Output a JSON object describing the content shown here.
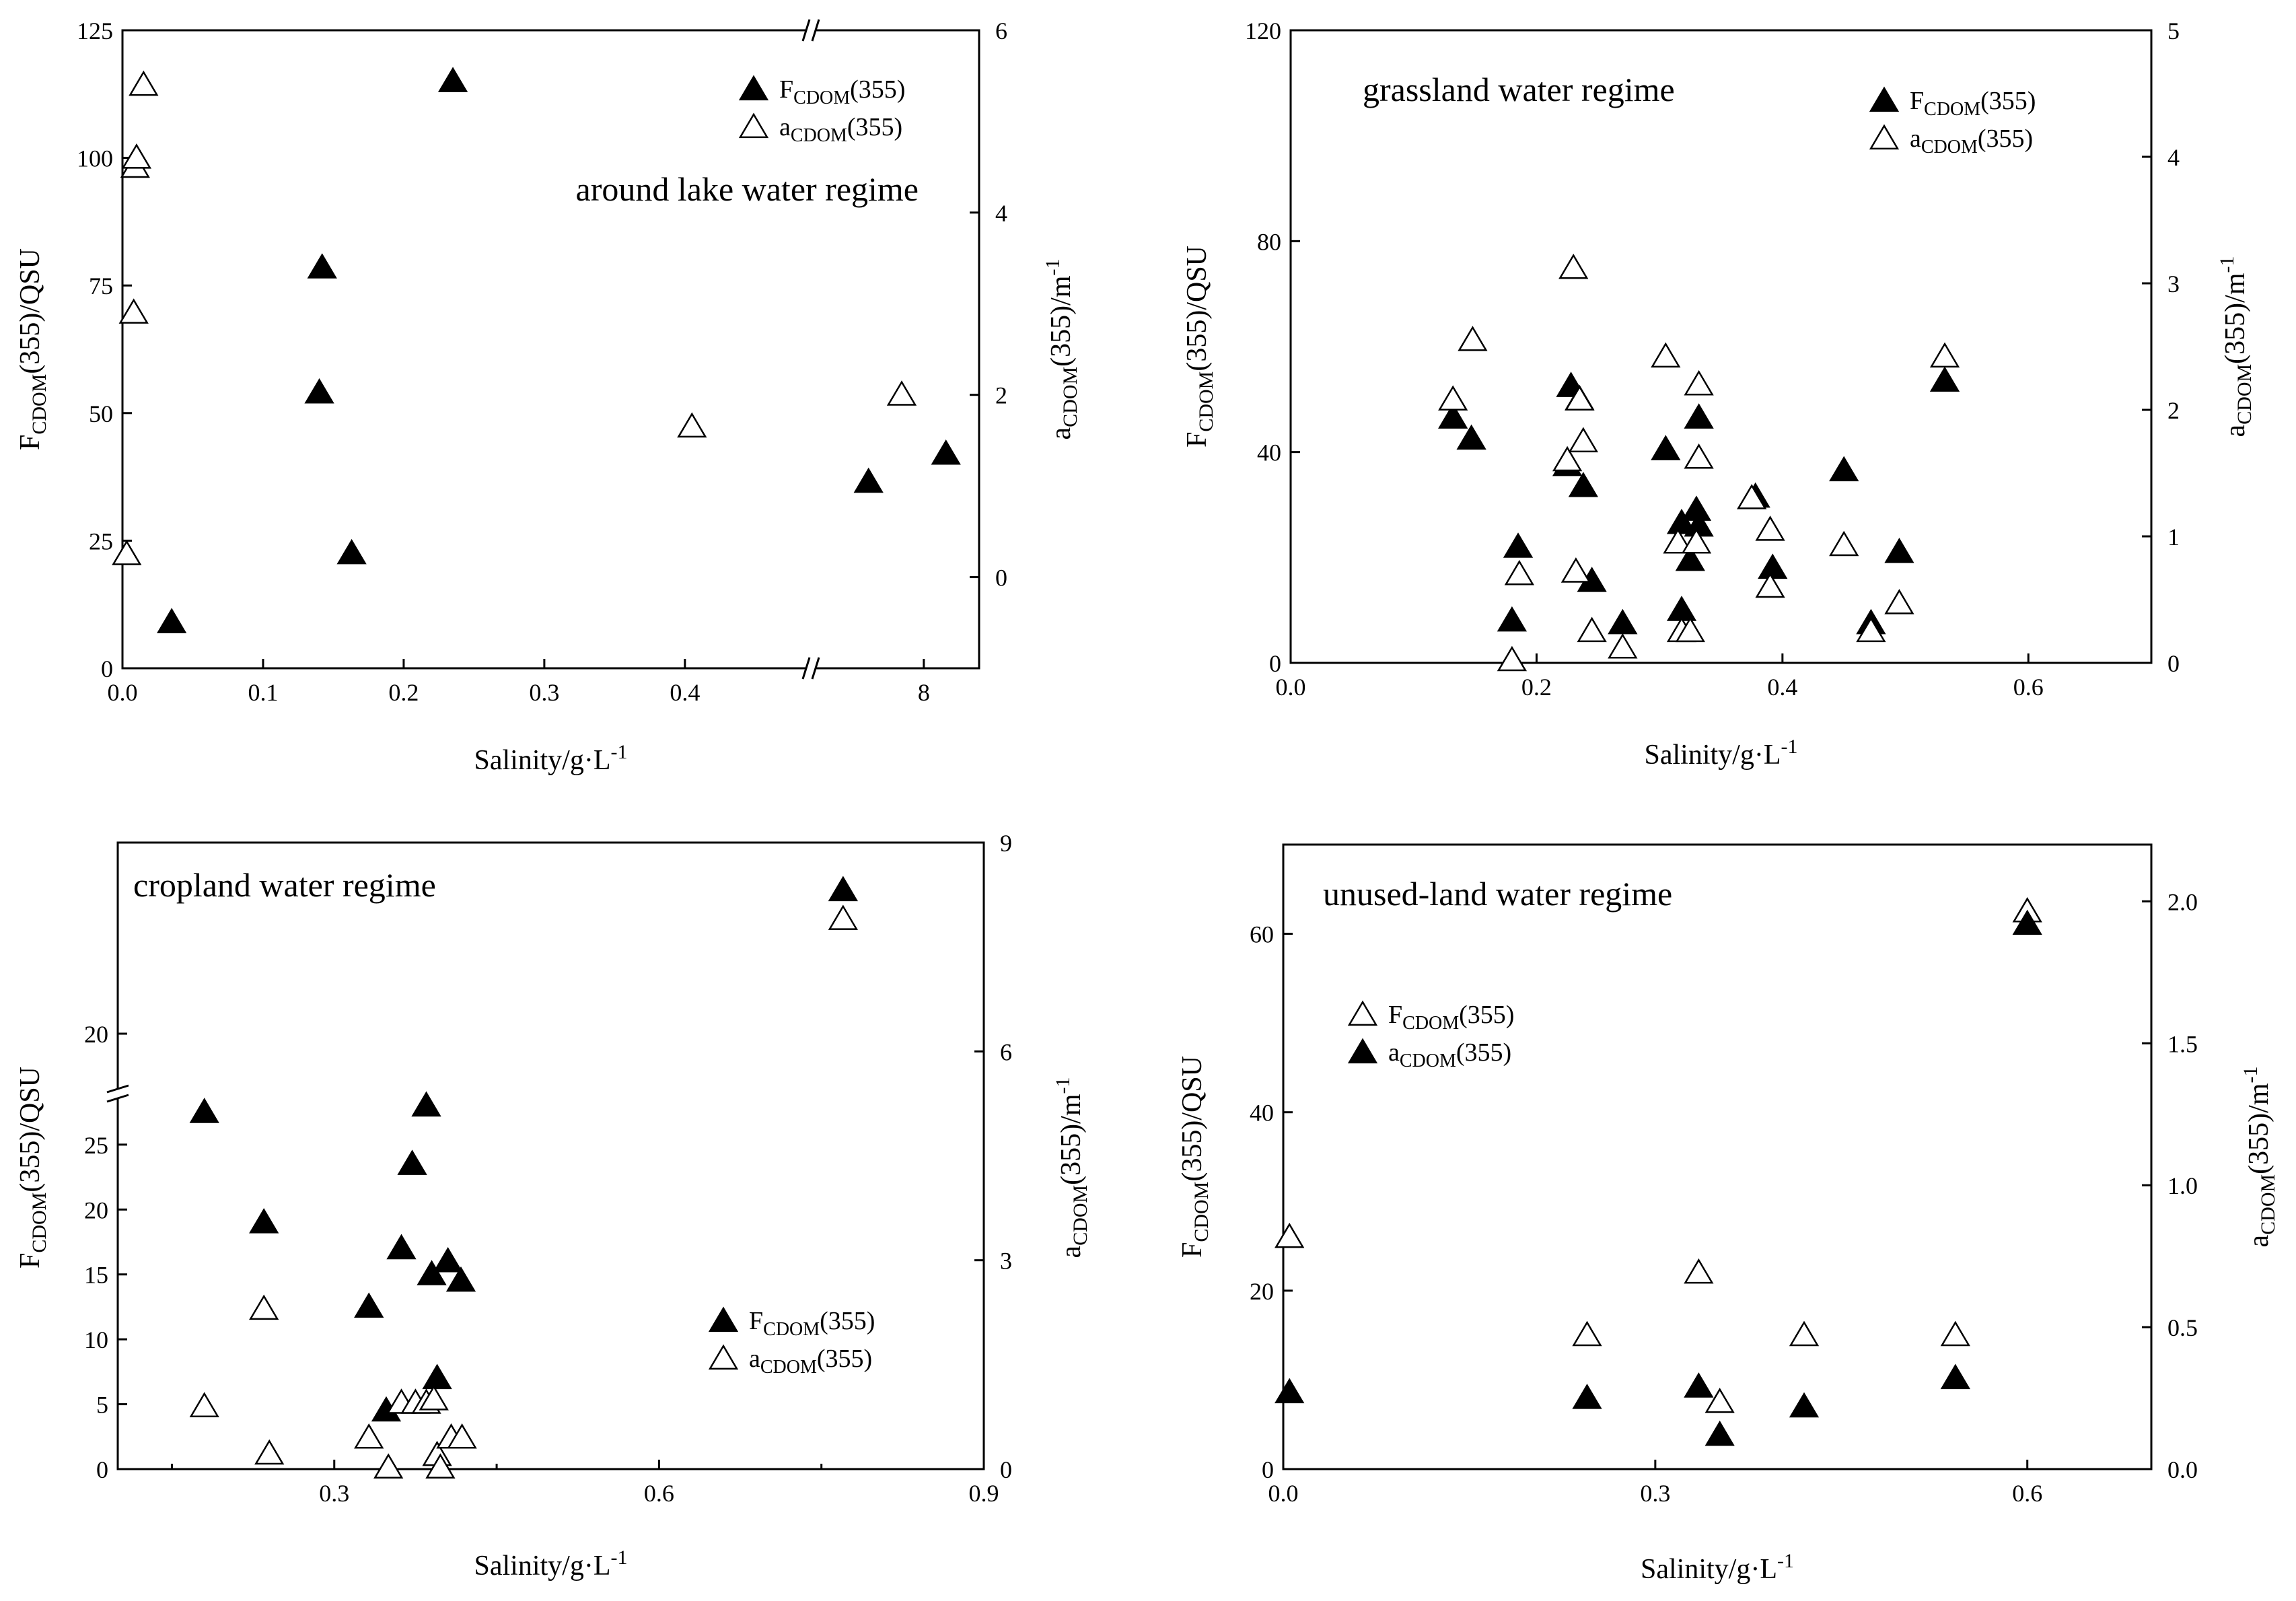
{
  "colors": {
    "axis": "#000000",
    "filled_marker": "#000000",
    "open_marker": "#ffffff"
  },
  "chart_data": [
    {
      "id": "around-lake",
      "type": "scatter",
      "title": "around lake water regime",
      "xlabel": "Salinity/g·L",
      "xlabel_sup": "-1",
      "ylabel_left": {
        "base": "F",
        "sub": "CDOM",
        "rest": "(355)/QSU"
      },
      "ylabel_right": {
        "base": "a",
        "sub": "CDOM",
        "rest": "(355)/m",
        "sup": "-1"
      },
      "x_broken": true,
      "x_segments": [
        {
          "range": [
            0,
            0.48
          ],
          "ticks": [
            0.0,
            0.1,
            0.2,
            0.3,
            0.4
          ],
          "tick_labels": [
            "0.0",
            "0.1",
            "0.2",
            "0.3",
            "0.4"
          ]
        },
        {
          "range": [
            7.1,
            8.5
          ],
          "ticks": [
            8
          ],
          "tick_labels": [
            "8"
          ]
        }
      ],
      "ylim_left": [
        0,
        125
      ],
      "yticks_left": [
        0,
        25,
        50,
        75,
        100,
        125
      ],
      "ylim_right": [
        -1,
        6
      ],
      "yticks_right": [
        0,
        2,
        4,
        6
      ],
      "legend": {
        "position": "top-right",
        "entries": [
          {
            "marker": "filled",
            "base": "F",
            "sub": "CDOM",
            "rest": "(355)"
          },
          {
            "marker": "open",
            "base": "a",
            "sub": "CDOM",
            "rest": "(355)"
          }
        ]
      },
      "series": [
        {
          "name": "FCDOM(355)",
          "marker": "filled",
          "axis": "left",
          "points": [
            [
              0.035,
              9
            ],
            [
              0.14,
              54
            ],
            [
              0.142,
              78.5
            ],
            [
              0.163,
              22.5
            ],
            [
              0.235,
              115
            ],
            [
              7.5,
              36.5
            ],
            [
              8.2,
              42
            ]
          ]
        },
        {
          "name": "aCDOM(355)",
          "marker": "open",
          "axis": "right",
          "points": [
            [
              0.003,
              0.25
            ],
            [
              0.008,
              2.9
            ],
            [
              0.009,
              4.5
            ],
            [
              0.01,
              4.6
            ],
            [
              0.015,
              5.4
            ],
            [
              0.405,
              1.65
            ],
            [
              7.8,
              2.0
            ]
          ]
        }
      ]
    },
    {
      "id": "grassland",
      "type": "scatter",
      "title": "grassland water regime",
      "xlabel": "Salinity/g·L",
      "xlabel_sup": "-1",
      "ylabel_left": {
        "base": "F",
        "sub": "CDOM",
        "rest": "(355)/QSU"
      },
      "ylabel_right": {
        "base": "a",
        "sub": "CDOM",
        "rest": "(355)/m",
        "sup": "-1"
      },
      "xlim": [
        0,
        0.7
      ],
      "xticks": [
        0.0,
        0.2,
        0.4,
        0.6
      ],
      "xtick_labels": [
        "0.0",
        "0.2",
        "0.4",
        "0.6"
      ],
      "ylim_left": [
        0,
        120
      ],
      "yticks_left": [
        0,
        40,
        80,
        120
      ],
      "ylim_right": [
        0,
        5
      ],
      "yticks_right": [
        0,
        1,
        2,
        3,
        4,
        5
      ],
      "legend": {
        "position": "top-right",
        "entries": [
          {
            "marker": "filled",
            "base": "F",
            "sub": "CDOM",
            "rest": "(355)"
          },
          {
            "marker": "open",
            "base": "a",
            "sub": "CDOM",
            "rest": "(355)"
          }
        ]
      },
      "series": [
        {
          "name": "FCDOM(355)",
          "marker": "filled",
          "axis": "left",
          "points": [
            [
              0.132,
              46.5
            ],
            [
              0.147,
              42.5
            ],
            [
              0.18,
              8
            ],
            [
              0.185,
              22
            ],
            [
              0.225,
              37.5
            ],
            [
              0.228,
              52.5
            ],
            [
              0.235,
              50
            ],
            [
              0.238,
              33.5
            ],
            [
              0.245,
              15.5
            ],
            [
              0.27,
              7.5
            ],
            [
              0.305,
              40.5
            ],
            [
              0.318,
              26.5
            ],
            [
              0.318,
              10
            ],
            [
              0.325,
              19.5
            ],
            [
              0.33,
              29
            ],
            [
              0.332,
              26
            ],
            [
              0.332,
              46.5
            ],
            [
              0.378,
              31.5
            ],
            [
              0.392,
              18
            ],
            [
              0.45,
              36.5
            ],
            [
              0.472,
              7.5
            ],
            [
              0.495,
              21
            ],
            [
              0.532,
              53.5
            ]
          ]
        },
        {
          "name": "aCDOM(355)",
          "marker": "open",
          "axis": "right",
          "points": [
            [
              0.132,
              2.08
            ],
            [
              0.148,
              2.55
            ],
            [
              0.18,
              0.02
            ],
            [
              0.186,
              0.7
            ],
            [
              0.225,
              1.6
            ],
            [
              0.23,
              3.12
            ],
            [
              0.232,
              0.72
            ],
            [
              0.235,
              2.08
            ],
            [
              0.238,
              1.75
            ],
            [
              0.245,
              0.25
            ],
            [
              0.27,
              0.12
            ],
            [
              0.305,
              2.42
            ],
            [
              0.315,
              0.95
            ],
            [
              0.318,
              0.25
            ],
            [
              0.325,
              0.25
            ],
            [
              0.33,
              0.95
            ],
            [
              0.332,
              2.2
            ],
            [
              0.332,
              1.62
            ],
            [
              0.375,
              1.3
            ],
            [
              0.39,
              1.05
            ],
            [
              0.39,
              0.6
            ],
            [
              0.45,
              0.93
            ],
            [
              0.472,
              0.25
            ],
            [
              0.495,
              0.47
            ],
            [
              0.532,
              2.42
            ]
          ]
        }
      ]
    },
    {
      "id": "cropland",
      "type": "scatter",
      "title": "cropland water regime",
      "xlabel": "Salinity/g·L",
      "xlabel_sup": "-1",
      "ylabel_left": {
        "base": "F",
        "sub": "CDOM",
        "rest": "(355)/QSU"
      },
      "ylabel_right": {
        "base": "a",
        "sub": "CDOM",
        "rest": "(355)/m",
        "sup": "-1"
      },
      "xlim": [
        0.1,
        0.9
      ],
      "xticks": [
        0.3,
        0.6,
        0.9
      ],
      "xtick_labels": [
        "0.3",
        "0.6",
        "0.9"
      ],
      "y_broken": true,
      "y_segments": [
        {
          "range": [
            0,
            28
          ],
          "ticks": [
            0,
            5,
            10,
            15,
            20,
            25
          ],
          "tick_labels": [
            "0",
            "5",
            "10",
            "15",
            "20",
            "25"
          ]
        },
        {
          "range": [
            18,
            28
          ],
          "ticks": [
            20
          ],
          "tick_labels": [
            "20"
          ]
        }
      ],
      "ylim_right": [
        0,
        9
      ],
      "yticks_right": [
        0,
        3,
        6,
        9
      ],
      "legend": {
        "position": "lower-right",
        "entries": [
          {
            "marker": "filled",
            "base": "F",
            "sub": "CDOM",
            "rest": "(355)"
          },
          {
            "marker": "open",
            "base": "a",
            "sub": "CDOM",
            "rest": "(355)"
          }
        ]
      },
      "series": [
        {
          "name": "FCDOM(355)",
          "marker": "filled",
          "axis": "left",
          "points": [
            [
              0.18,
              27.5
            ],
            [
              0.235,
              19
            ],
            [
              0.332,
              12.5
            ],
            [
              0.348,
              4.5
            ],
            [
              0.362,
              17
            ],
            [
              0.372,
              23.5
            ],
            [
              0.385,
              28
            ],
            [
              0.39,
              15
            ],
            [
              0.395,
              7
            ],
            [
              0.405,
              16
            ],
            [
              0.417,
              14.5
            ],
            [
              0.77,
              26
            ]
          ]
        },
        {
          "name": "aCDOM(355)",
          "marker": "open",
          "axis": "right",
          "points": [
            [
              0.18,
              0.9
            ],
            [
              0.235,
              2.3
            ],
            [
              0.24,
              0.22
            ],
            [
              0.332,
              0.45
            ],
            [
              0.35,
              0.02
            ],
            [
              0.362,
              0.95
            ],
            [
              0.375,
              0.95
            ],
            [
              0.385,
              0.95
            ],
            [
              0.392,
              1.0
            ],
            [
              0.395,
              0.2
            ],
            [
              0.398,
              0.02
            ],
            [
              0.408,
              0.45
            ],
            [
              0.418,
              0.45
            ],
            [
              0.77,
              7.9
            ]
          ]
        }
      ]
    },
    {
      "id": "unused-land",
      "type": "scatter",
      "title": "unused-land water regime",
      "xlabel": "Salinity/g·L",
      "xlabel_sup": "-1",
      "ylabel_left": {
        "base": "F",
        "sub": "CDOM",
        "rest": "(355)/QSU"
      },
      "ylabel_right": {
        "base": "a",
        "sub": "CDOM",
        "rest": "(355)/m",
        "sup": "-1"
      },
      "xlim": [
        0,
        0.7
      ],
      "xticks": [
        0.0,
        0.3,
        0.6
      ],
      "xtick_labels": [
        "0.0",
        "0.3",
        "0.6"
      ],
      "ylim_left": [
        0,
        70
      ],
      "yticks_left": [
        0,
        20,
        40,
        60
      ],
      "ylim_right": [
        0,
        2.2
      ],
      "yticks_right": [
        0.0,
        0.5,
        1.0,
        1.5,
        2.0
      ],
      "ytick_labels_right": [
        "0.0",
        "0.5",
        "1.0",
        "1.5",
        "2.0"
      ],
      "legend": {
        "position": "upper-left",
        "entries": [
          {
            "marker": "open",
            "base": "F",
            "sub": "CDOM",
            "rest": "(355)"
          },
          {
            "marker": "filled",
            "base": "a",
            "sub": "CDOM",
            "rest": "(355)"
          }
        ]
      },
      "series": [
        {
          "name": "FCDOM(355)",
          "marker": "open",
          "axis": "left",
          "points": [
            [
              0.005,
              26
            ],
            [
              0.245,
              15
            ],
            [
              0.335,
              22
            ],
            [
              0.352,
              7.5
            ],
            [
              0.42,
              15
            ],
            [
              0.542,
              15
            ],
            [
              0.6,
              62.5
            ]
          ]
        },
        {
          "name": "aCDOM(355)",
          "marker": "filled",
          "axis": "right",
          "points": [
            [
              0.005,
              0.27
            ],
            [
              0.245,
              0.25
            ],
            [
              0.335,
              0.29
            ],
            [
              0.352,
              0.12
            ],
            [
              0.42,
              0.22
            ],
            [
              0.542,
              0.32
            ],
            [
              0.6,
              1.92
            ]
          ]
        }
      ]
    }
  ]
}
